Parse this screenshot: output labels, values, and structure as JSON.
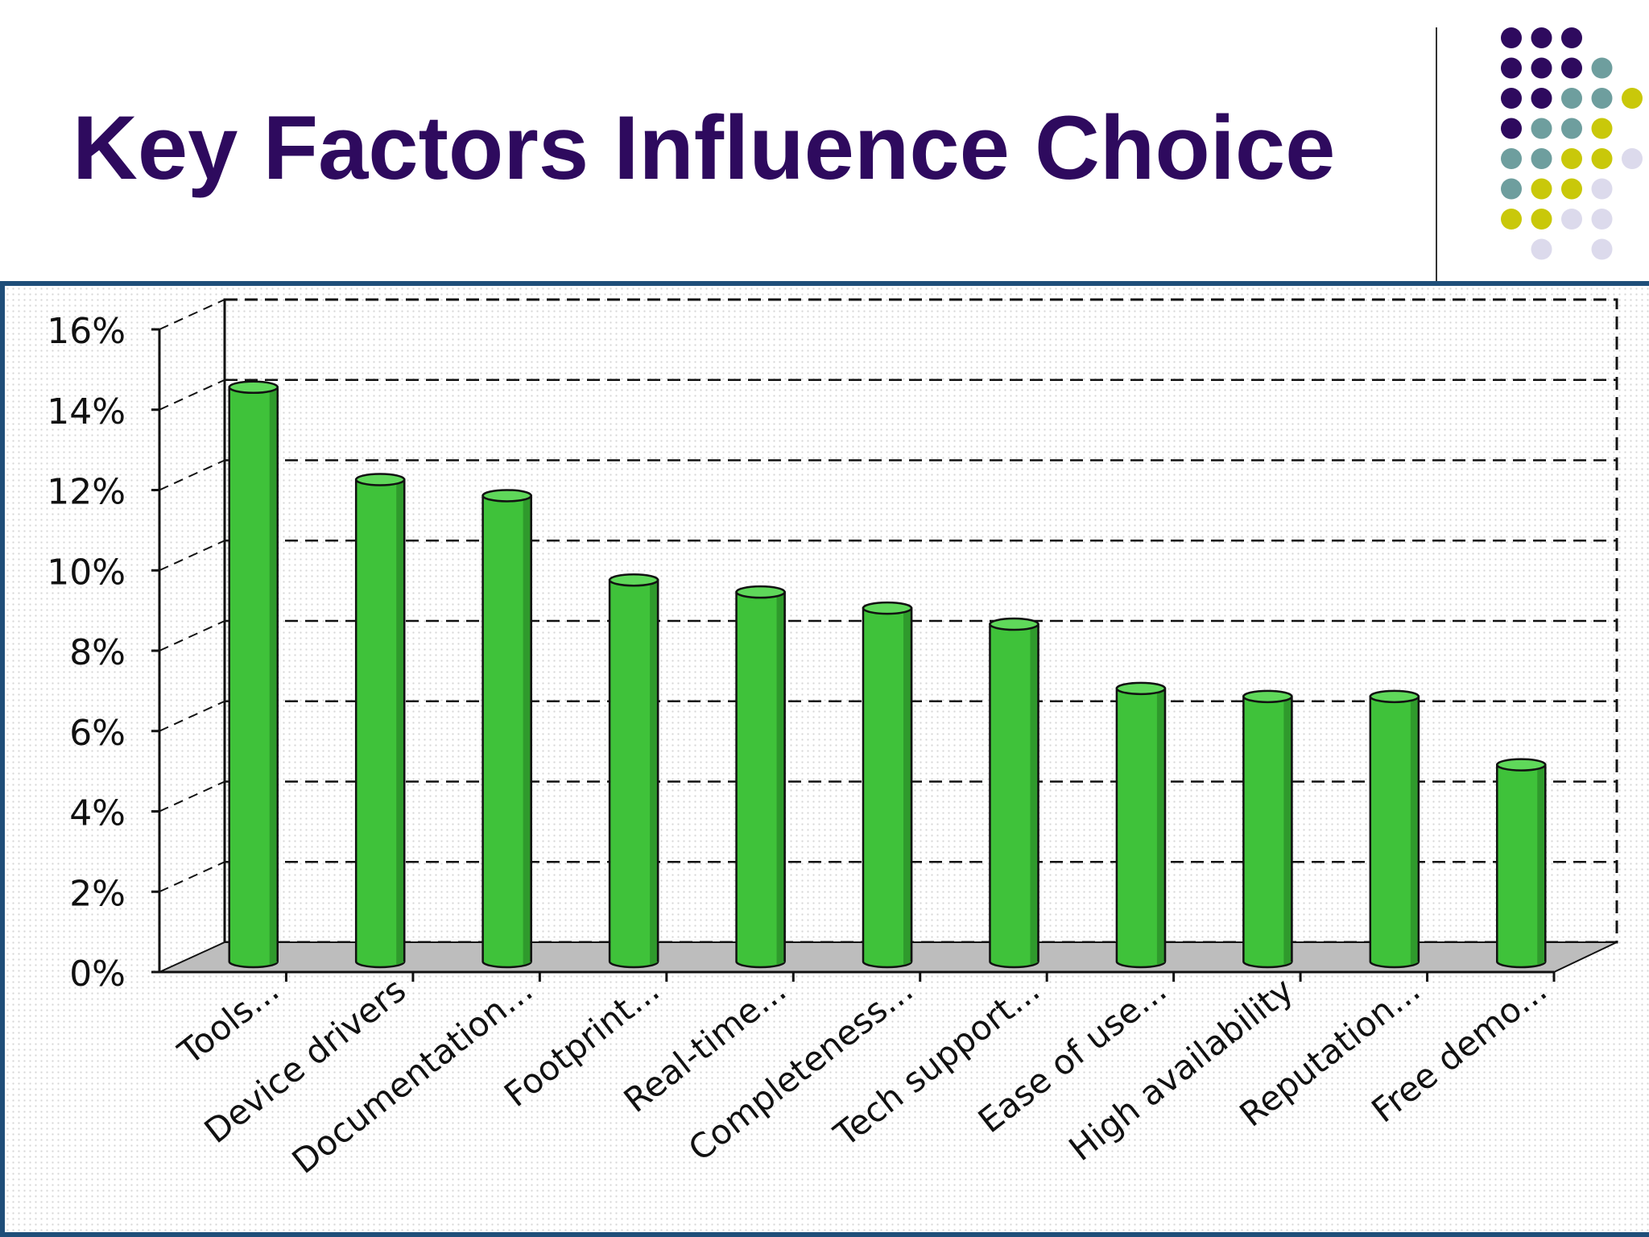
{
  "slide": {
    "title": "Key Factors Influence Choice"
  },
  "colors": {
    "title": "#2e0a5e",
    "bar_front": "#3fc23a",
    "bar_side": "#2f9a2c",
    "bar_top": "#5fd85a",
    "floor": "#bdbdbd",
    "frame": "#1f4e79"
  },
  "dot_grid": {
    "rows": [
      [
        "purple",
        "purple",
        "purple",
        "none",
        "none"
      ],
      [
        "purple",
        "purple",
        "purple",
        "teal",
        "none"
      ],
      [
        "purple",
        "purple",
        "teal",
        "teal",
        "yellow"
      ],
      [
        "purple",
        "teal",
        "teal",
        "yellow",
        "none"
      ],
      [
        "teal",
        "teal",
        "yellow",
        "yellow",
        "lavender"
      ],
      [
        "teal",
        "yellow",
        "yellow",
        "lavender",
        "none"
      ],
      [
        "yellow",
        "yellow",
        "lavender",
        "lavender",
        "none"
      ],
      [
        "none",
        "lavender",
        "none",
        "lavender",
        "none"
      ]
    ],
    "palette": {
      "purple": "#2e0a5e",
      "teal": "#6e9e9e",
      "yellow": "#c9c80a",
      "lavender": "#dcdaec"
    }
  },
  "chart_data": {
    "type": "bar",
    "categories": [
      "Tools...",
      "Device drivers",
      "Documentation...",
      "Footprint...",
      "Real-time...",
      "Completeness...",
      "Tech support...",
      "Ease of use...",
      "High availability",
      "Reputation...",
      "Free demo..."
    ],
    "values": [
      14.3,
      12.0,
      11.6,
      9.5,
      9.2,
      8.8,
      8.4,
      6.8,
      6.6,
      6.6,
      4.9
    ],
    "ylim": [
      0,
      16
    ],
    "yticks": [
      "0%",
      "2%",
      "4%",
      "6%",
      "8%",
      "10%",
      "12%",
      "14%",
      "16%"
    ],
    "ytick_values": [
      0,
      2,
      4,
      6,
      8,
      10,
      12,
      14,
      16
    ],
    "grid": "dashed horizontal",
    "legend": "none",
    "style": "3D cylinders"
  }
}
